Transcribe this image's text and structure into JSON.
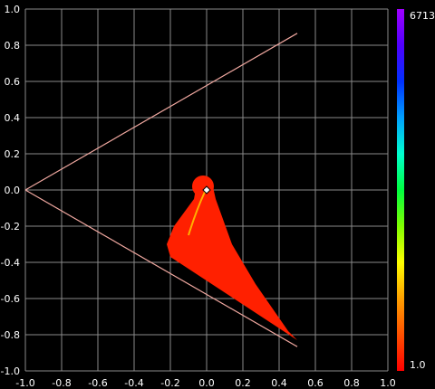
{
  "chart_data": {
    "type": "scatter",
    "subtype": "density-heatmap",
    "title": "",
    "xlabel": "",
    "ylabel": "",
    "xlim": [
      -1.0,
      1.0
    ],
    "ylim": [
      -1.0,
      1.0
    ],
    "x_ticks": [
      "-1.0",
      "-0.8",
      "-0.6",
      "-0.4",
      "-0.2",
      "0.0",
      "0.2",
      "0.4",
      "0.6",
      "0.8",
      "1.0"
    ],
    "y_ticks": [
      "1.0",
      "0.8",
      "0.6",
      "0.4",
      "0.2",
      "0.0",
      "-0.2",
      "-0.4",
      "-0.6",
      "-0.8",
      "-1.0"
    ],
    "grid": true,
    "background": "#000000",
    "grid_color": "#8a8a8a",
    "boundary_lines": {
      "color": "#f0a8a0",
      "segments": [
        {
          "from": [
            -1.0,
            0.0
          ],
          "to": [
            0.5,
            0.866
          ]
        },
        {
          "from": [
            -1.0,
            0.0
          ],
          "to": [
            0.5,
            -0.866
          ]
        }
      ]
    },
    "marker": {
      "x": 0.0,
      "y": 0.0,
      "color": "#ffffff"
    },
    "density_region": {
      "description_points": [
        [
          -0.05,
          0.06
        ],
        [
          0.03,
          0.04
        ],
        [
          0.05,
          -0.05
        ],
        [
          0.14,
          -0.3
        ],
        [
          0.27,
          -0.52
        ],
        [
          0.45,
          -0.78
        ],
        [
          0.5,
          -0.83
        ],
        [
          -0.2,
          -0.37
        ],
        [
          -0.22,
          -0.3
        ],
        [
          -0.18,
          -0.2
        ],
        [
          -0.07,
          -0.05
        ]
      ],
      "color": "#ff2000"
    },
    "colorbar": {
      "max_label": "6713",
      "min_label": "1.0",
      "colors": [
        "#a000ff",
        "#5000ff",
        "#0030ff",
        "#00a0ff",
        "#00ffd0",
        "#00ff40",
        "#80ff00",
        "#ffff00",
        "#ffa000",
        "#ff5000",
        "#ff0000"
      ]
    }
  }
}
